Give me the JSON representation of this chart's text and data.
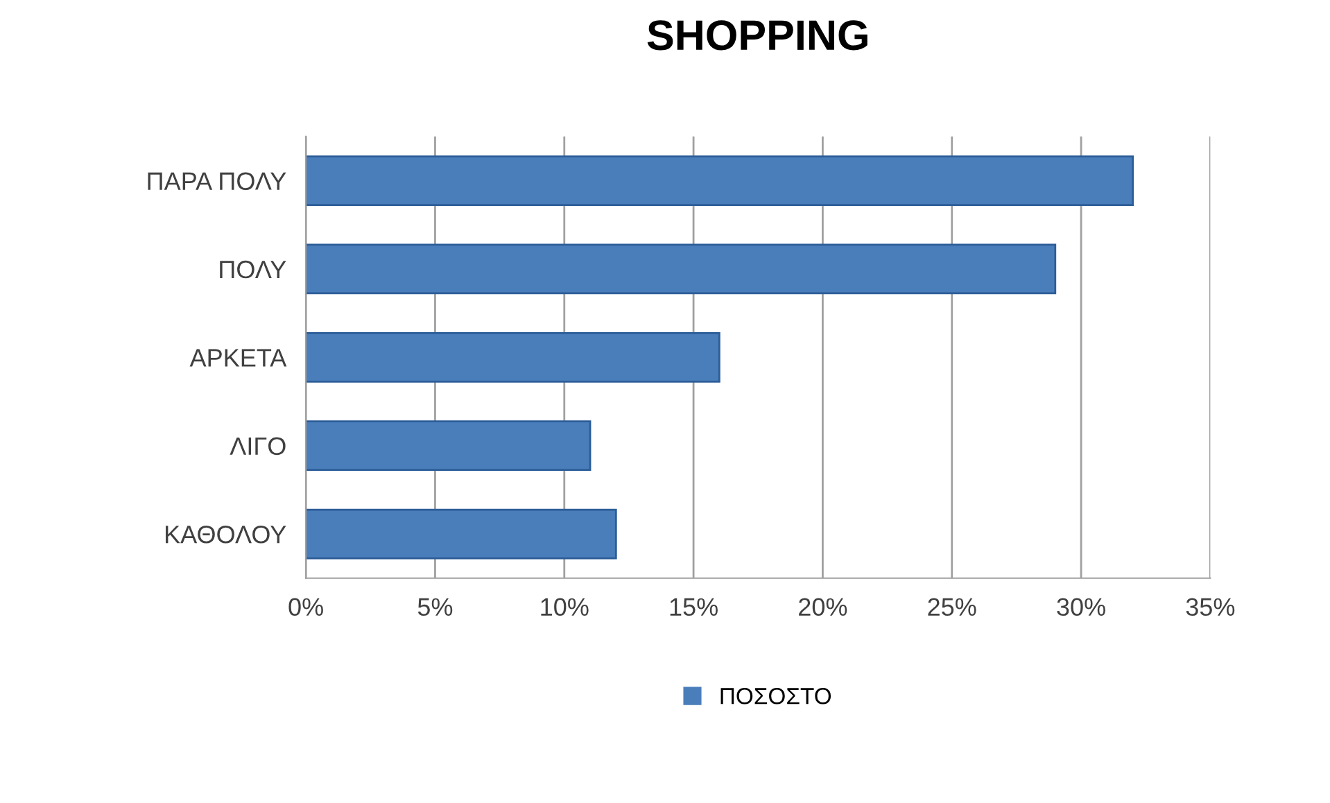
{
  "chart_data": {
    "type": "bar",
    "orientation": "horizontal",
    "title": "SHOPPING",
    "categories": [
      "ΠΑΡΑ ΠΟΛΥ",
      "ΠΟΛΥ",
      "ΑΡΚΕΤΑ",
      "ΛΙΓΟ",
      "ΚΑΘΟΛΟΥ"
    ],
    "series": [
      {
        "name": "ΠΟΣΟΣΤΟ",
        "color": "#4a7ebb",
        "values": [
          32,
          29,
          16,
          11,
          12
        ]
      }
    ],
    "xlim": [
      0,
      35
    ],
    "xticks": [
      {
        "value": 0,
        "label": "0%"
      },
      {
        "value": 5,
        "label": "5%"
      },
      {
        "value": 10,
        "label": "10%"
      },
      {
        "value": 15,
        "label": "15%"
      },
      {
        "value": 20,
        "label": "20%"
      },
      {
        "value": 25,
        "label": "25%"
      },
      {
        "value": 30,
        "label": "30%"
      },
      {
        "value": 35,
        "label": "35%"
      }
    ],
    "grid": "x",
    "legend": "bottom"
  }
}
